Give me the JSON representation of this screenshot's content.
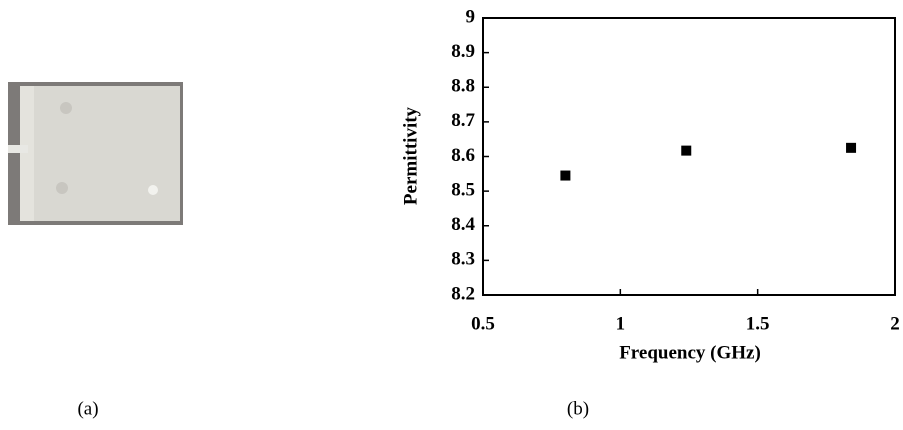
{
  "chart_data": {
    "type": "scatter",
    "x_label": "Frequency (GHz)",
    "y_label": "Permittivity",
    "x": [
      0.8,
      1.24,
      1.84
    ],
    "values": [
      8.545,
      8.617,
      8.625
    ],
    "color": "#000000",
    "marker": "square",
    "xlim": [
      0.5,
      2
    ],
    "xticks": [
      0.5,
      1,
      1.5,
      2
    ],
    "ylim": [
      8.2,
      9
    ],
    "yticks": [
      8.2,
      8.3,
      8.4,
      8.5,
      8.6,
      8.7,
      8.8,
      8.9,
      9
    ]
  },
  "captions": [
    "(a)",
    "(b)"
  ]
}
